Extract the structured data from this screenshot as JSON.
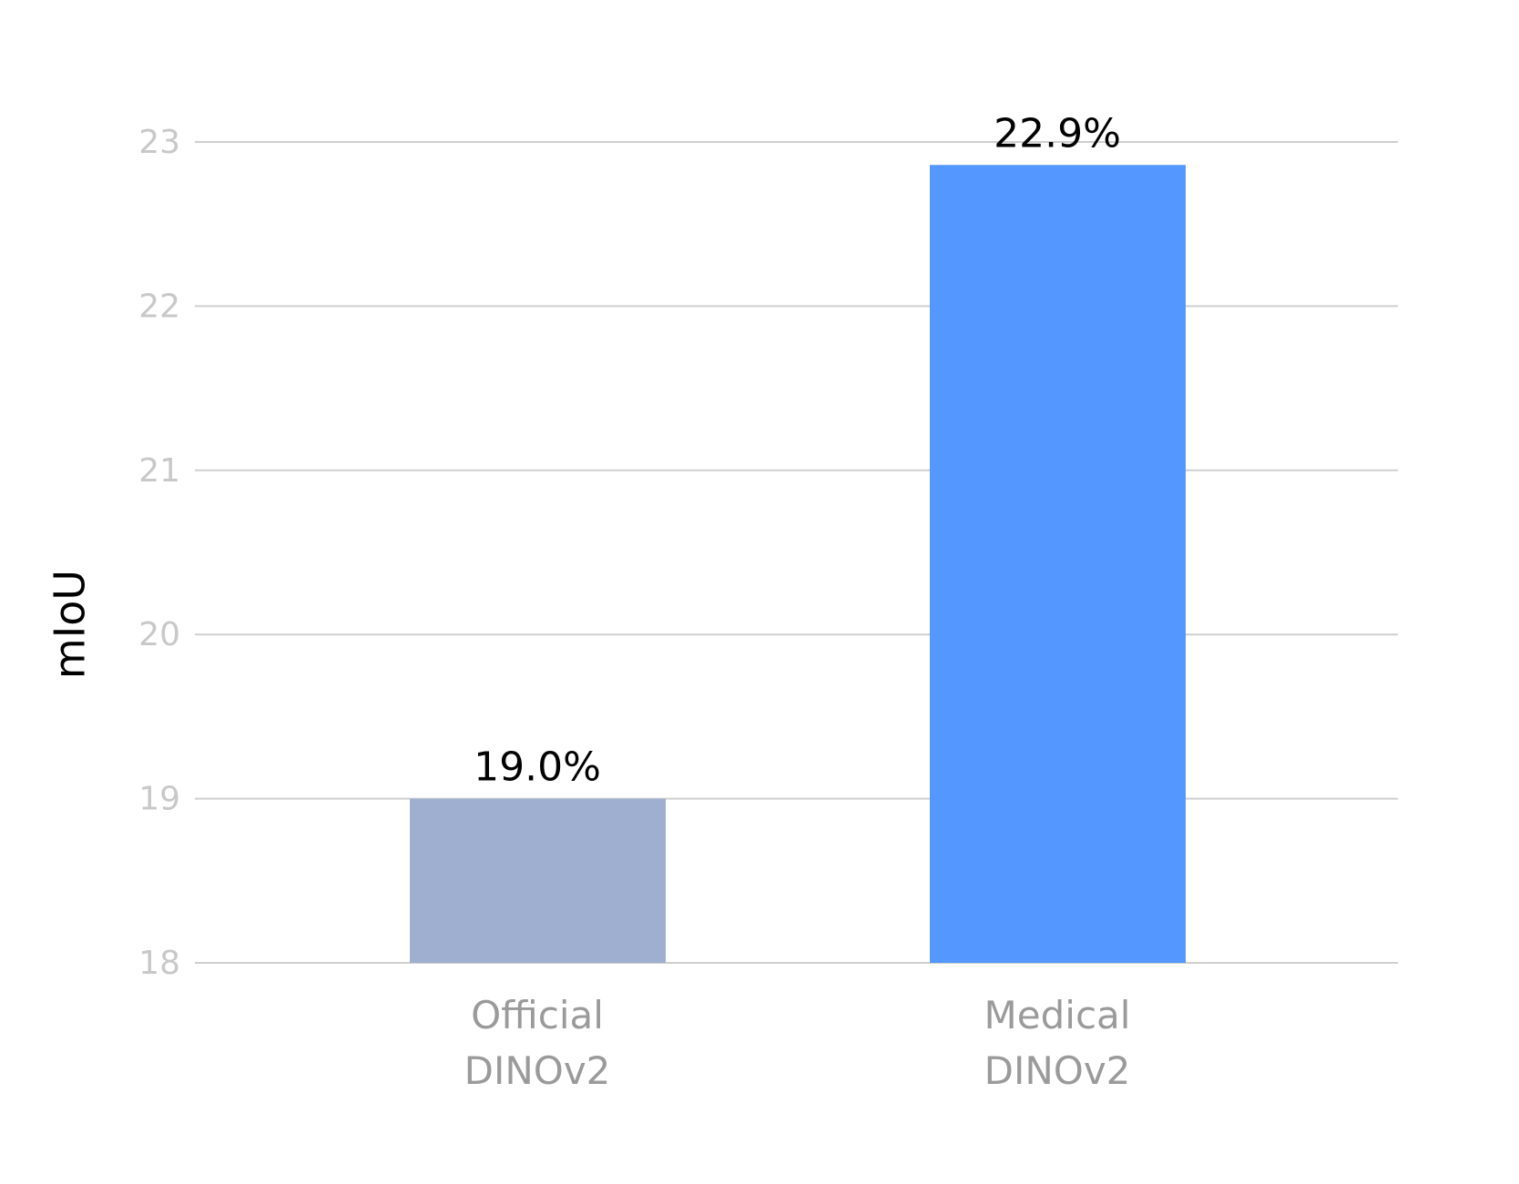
{
  "chart_data": {
    "type": "bar",
    "y_label": "mIoU",
    "categories": [
      "Official DINOv2",
      "Medical DINOv2"
    ],
    "series": [
      {
        "name": null,
        "values": [
          19.0,
          22.86
        ],
        "value_labels": [
          "19.0%",
          "22.9%"
        ],
        "colors": [
          "#9eafcf",
          "#5497ff"
        ]
      }
    ],
    "ylim": [
      18,
      23
    ],
    "yticks": [
      18,
      19,
      20,
      21,
      22,
      23
    ],
    "grid": true
  }
}
